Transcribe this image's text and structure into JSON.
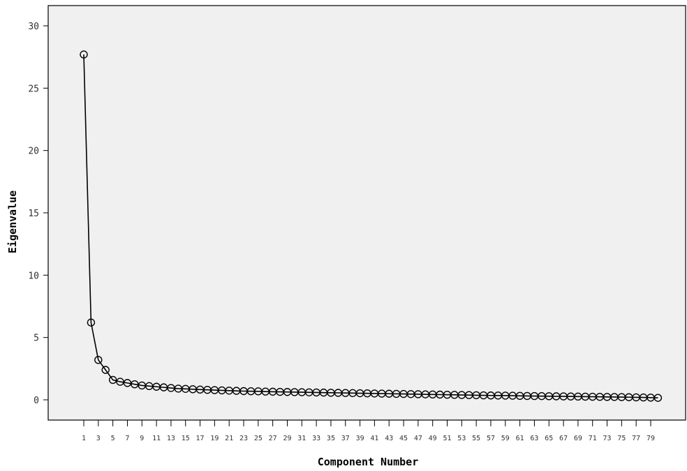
{
  "chart_data": {
    "type": "line",
    "title": "",
    "xlabel": "Component Number",
    "ylabel": "Eigenvalue",
    "xlim": [
      1,
      80
    ],
    "ylim": [
      0,
      30
    ],
    "y_ticks": [
      0,
      5,
      10,
      15,
      20,
      25,
      30
    ],
    "x_tick_labels": [
      1,
      3,
      5,
      7,
      9,
      11,
      13,
      15,
      17,
      19,
      21,
      23,
      25,
      27,
      29,
      31,
      33,
      35,
      37,
      39,
      41,
      43,
      45,
      47,
      49,
      51,
      53,
      55,
      57,
      59,
      61,
      63,
      65,
      67,
      69,
      71,
      73,
      75,
      77,
      79
    ],
    "grid": false,
    "marker": "open-circle",
    "colors": {
      "plot_background": "#f0f0f0",
      "line": "#000000"
    },
    "series": [
      {
        "x": [
          1,
          2,
          3,
          4,
          5,
          6,
          7,
          8,
          9,
          10,
          11,
          12,
          13,
          14,
          15,
          16,
          17,
          18,
          19,
          20,
          21,
          22,
          23,
          24,
          25,
          26,
          27,
          28,
          29,
          30,
          31,
          32,
          33,
          34,
          35,
          36,
          37,
          38,
          39,
          40,
          41,
          42,
          43,
          44,
          45,
          46,
          47,
          48,
          49,
          50,
          51,
          52,
          53,
          54,
          55,
          56,
          57,
          58,
          59,
          60,
          61,
          62,
          63,
          64,
          65,
          66,
          67,
          68,
          69,
          70,
          71,
          72,
          73,
          74,
          75,
          76,
          77,
          78,
          79,
          80
        ],
        "values": [
          27.7,
          6.2,
          3.2,
          2.4,
          1.6,
          1.45,
          1.35,
          1.25,
          1.15,
          1.1,
          1.05,
          1.0,
          0.95,
          0.9,
          0.88,
          0.85,
          0.82,
          0.8,
          0.78,
          0.76,
          0.74,
          0.72,
          0.7,
          0.69,
          0.68,
          0.66,
          0.65,
          0.64,
          0.63,
          0.62,
          0.61,
          0.6,
          0.59,
          0.58,
          0.57,
          0.56,
          0.55,
          0.54,
          0.53,
          0.52,
          0.51,
          0.5,
          0.49,
          0.48,
          0.47,
          0.46,
          0.45,
          0.44,
          0.43,
          0.42,
          0.41,
          0.4,
          0.39,
          0.38,
          0.37,
          0.36,
          0.35,
          0.345,
          0.34,
          0.33,
          0.32,
          0.31,
          0.305,
          0.3,
          0.29,
          0.28,
          0.275,
          0.27,
          0.26,
          0.255,
          0.25,
          0.24,
          0.235,
          0.23,
          0.22,
          0.21,
          0.2,
          0.19,
          0.18,
          0.16
        ]
      }
    ]
  }
}
